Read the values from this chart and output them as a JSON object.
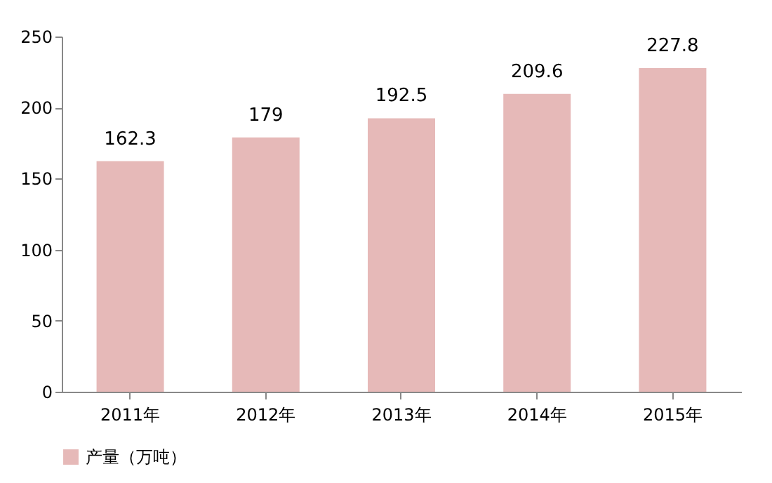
{
  "chart_data": {
    "type": "bar",
    "categories": [
      "2011年",
      "2012年",
      "2013年",
      "2014年",
      "2015年"
    ],
    "series": [
      {
        "name": "产量（万吨）",
        "color": "#e6b9b8",
        "values": [
          162.3,
          179,
          192.5,
          209.6,
          227.8
        ]
      }
    ],
    "ylim": [
      0,
      250
    ],
    "yticks": [
      0,
      50,
      100,
      150,
      200,
      250
    ],
    "data_labels": true,
    "legend": "bottom",
    "grid": false
  }
}
